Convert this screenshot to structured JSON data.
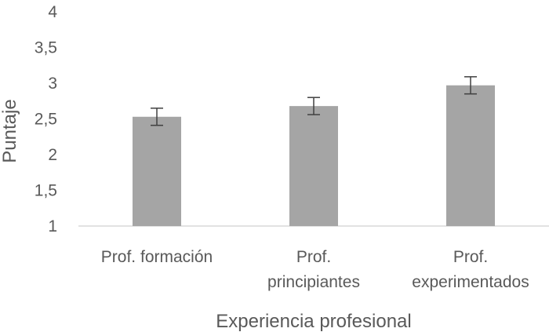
{
  "chart_data": {
    "type": "bar",
    "categories": [
      [
        "Prof. formación"
      ],
      [
        "Prof.",
        "principiantes"
      ],
      [
        "Prof.",
        "experimentados"
      ]
    ],
    "series": [
      {
        "values": [
          2.53,
          2.68,
          2.97
        ],
        "error": [
          0.12,
          0.12,
          0.12
        ]
      }
    ],
    "xlabel": "Experiencia profesional",
    "ylabel": "Puntaje",
    "ylim": [
      1,
      4
    ],
    "yticks": [
      1,
      1.5,
      2,
      2.5,
      3,
      3.5,
      4
    ],
    "ytick_labels": [
      "1",
      "1,5",
      "2",
      "2,5",
      "3",
      "3,5",
      "4"
    ],
    "grid": false,
    "legend": "none",
    "colors": {
      "bar": "#a5a5a5",
      "error_bar": "#404040",
      "axis": "#d9d9d9",
      "text": "#595959"
    }
  }
}
